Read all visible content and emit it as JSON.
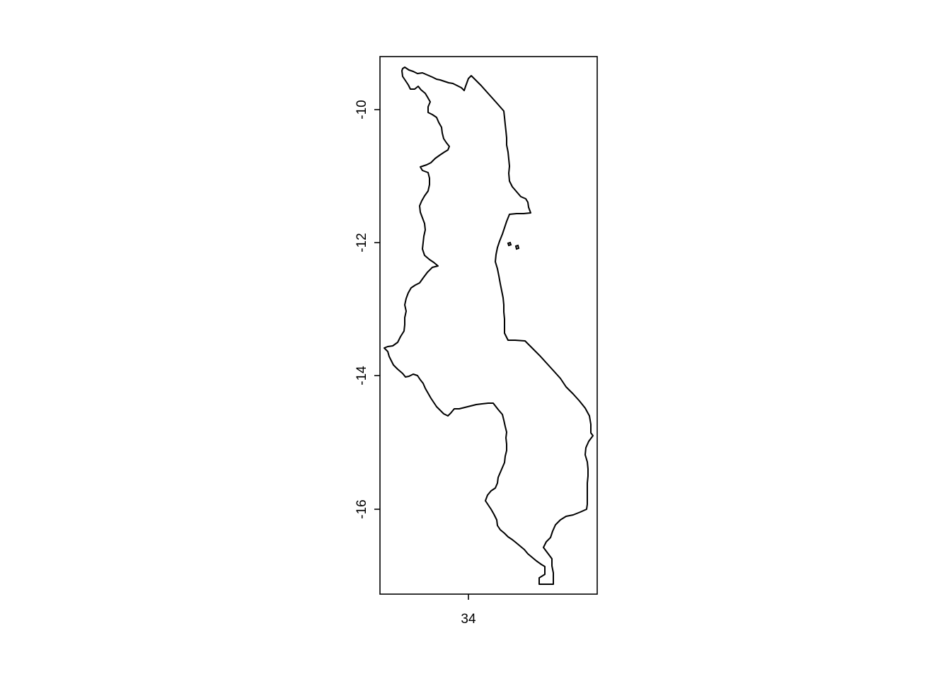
{
  "map": {
    "x_axis": {
      "ticks": [
        34
      ]
    },
    "y_axis": {
      "ticks": [
        -10,
        -12,
        -14,
        -16
      ]
    },
    "colors": {
      "outline": "#000000",
      "background": "#ffffff"
    }
  }
}
